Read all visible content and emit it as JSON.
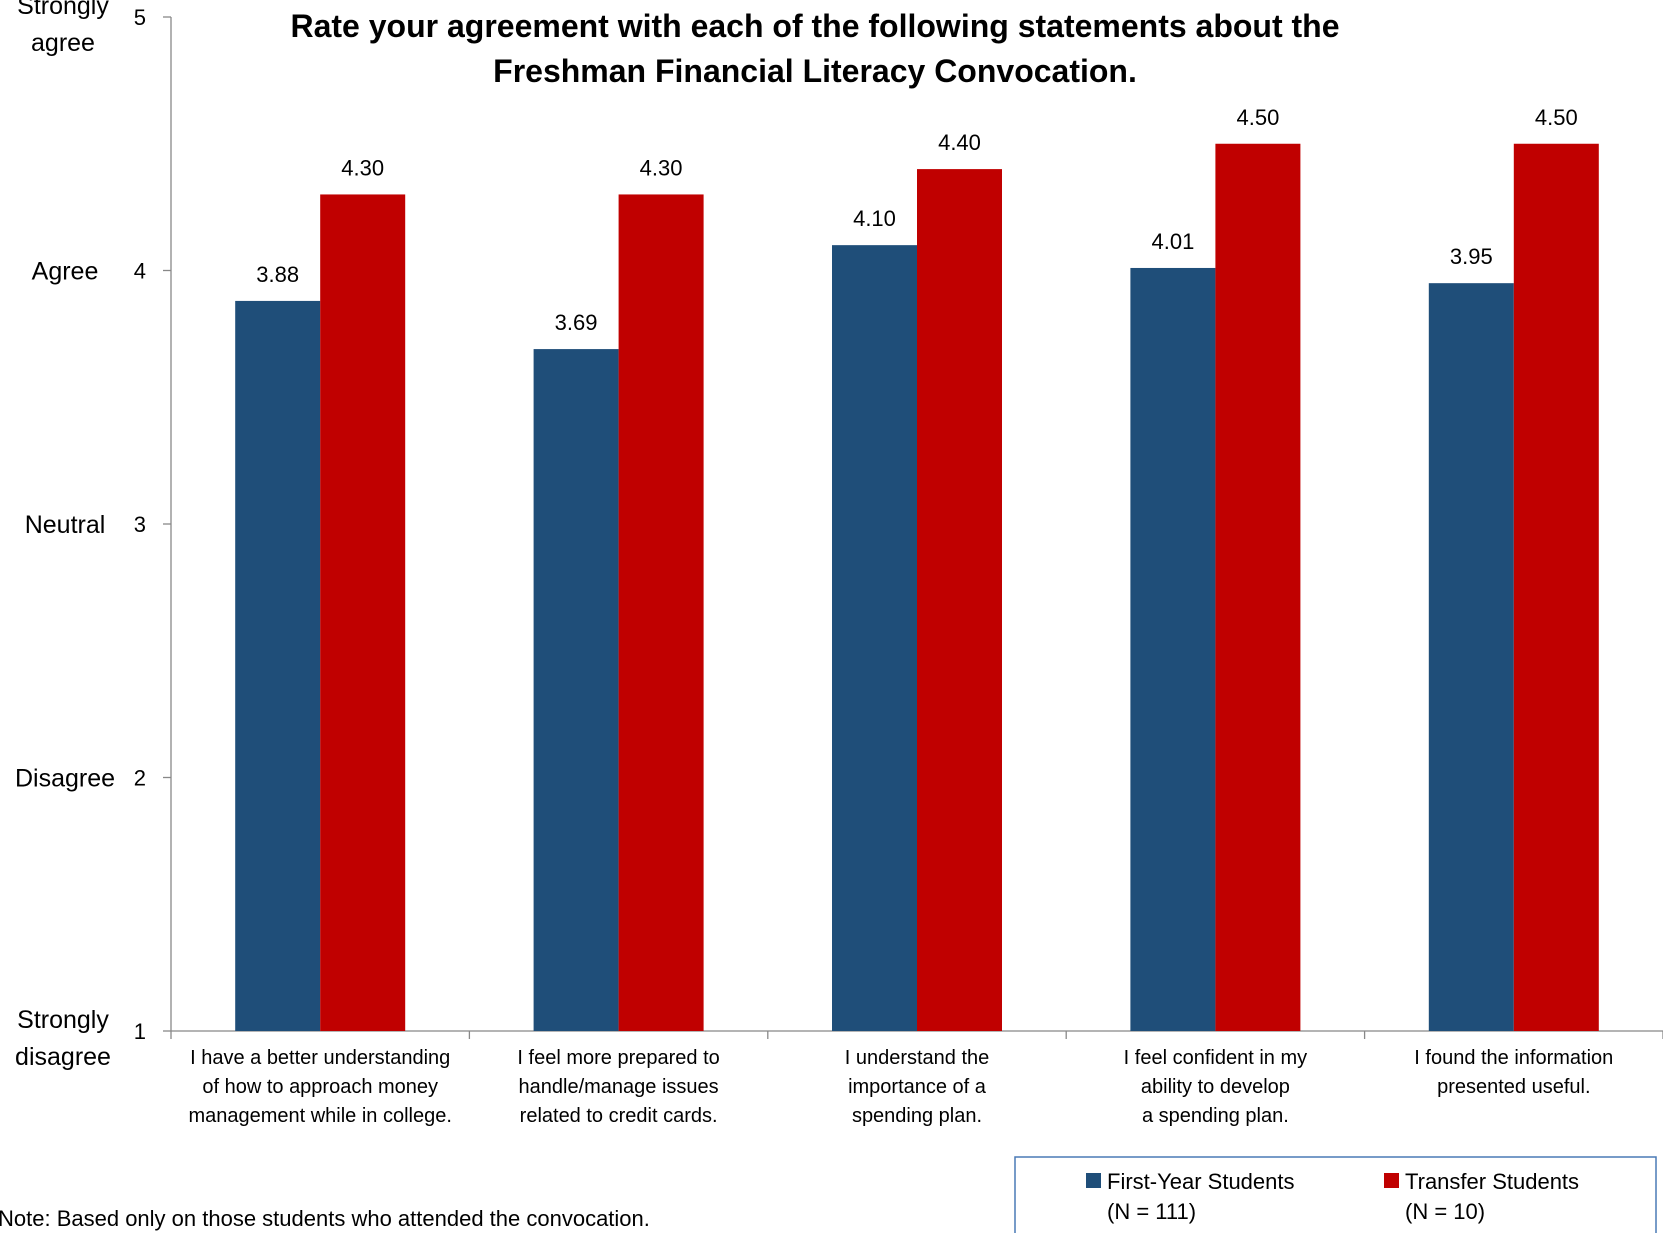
{
  "chart_data": {
    "type": "bar",
    "title_lines": [
      "Rate your agreement with each of the following statements about the",
      "Freshman Financial Literacy Convocation."
    ],
    "categories": [
      [
        "I have a better understanding",
        "of how to approach money",
        "management while in college."
      ],
      [
        "I feel more prepared to",
        "handle/manage issues",
        "related to credit cards."
      ],
      [
        "I understand the",
        "importance of a",
        "spending plan."
      ],
      [
        "I feel confident in my",
        "ability to develop",
        "a spending plan."
      ],
      [
        "I found the information",
        "presented useful."
      ]
    ],
    "series": [
      {
        "name": "First-Year Students",
        "name_line2": "(N = 111)",
        "color": "#1F4E79",
        "values": [
          3.88,
          3.69,
          4.1,
          4.01,
          3.95
        ],
        "value_labels": [
          "3.88",
          "3.69",
          "4.10",
          "4.01",
          "3.95"
        ]
      },
      {
        "name": "Transfer Students",
        "name_line2": "(N = 10)",
        "color": "#C00000",
        "values": [
          4.3,
          4.3,
          4.4,
          4.5,
          4.5
        ],
        "value_labels": [
          "4.30",
          "4.30",
          "4.40",
          "4.50",
          "4.50"
        ]
      }
    ],
    "ylim": [
      1,
      5
    ],
    "yticks": [
      "1",
      "2",
      "3",
      "4",
      "5"
    ],
    "rating_labels": [
      [
        "Strongly",
        "disagree"
      ],
      [
        "Disagree"
      ],
      [
        "Neutral"
      ],
      [
        "Agree"
      ],
      [
        "Strongly",
        "agree"
      ]
    ],
    "grid": false,
    "legend_position": "bottom-right"
  },
  "note": "Note: Based only on those students who attended the convocation."
}
